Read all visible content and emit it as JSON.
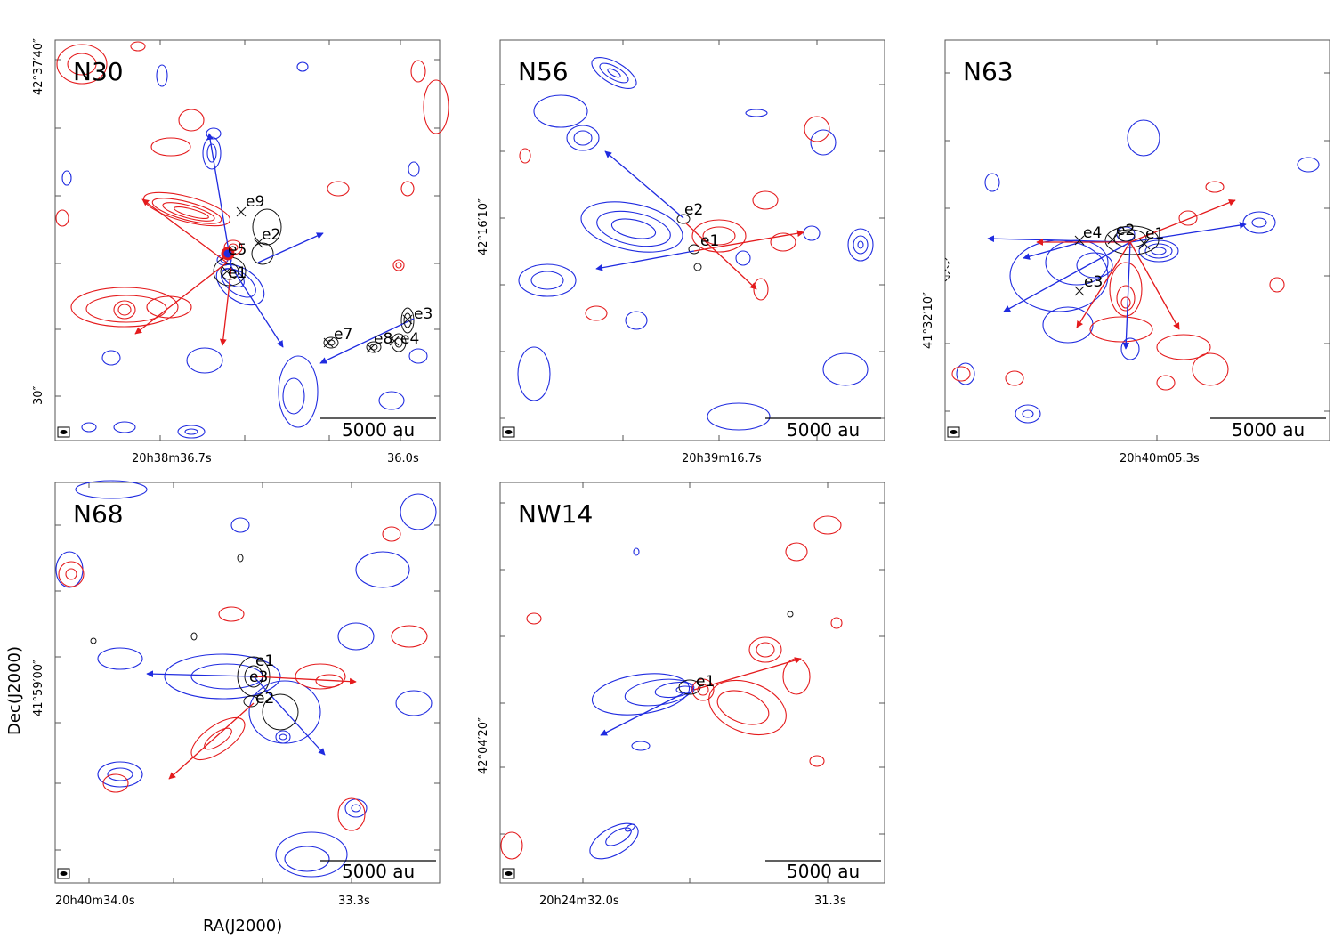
{
  "axes": {
    "xlabel": "RA(J2000)",
    "ylabel": "Dec(J2000)"
  },
  "scalebar_label": "5000 au",
  "panels": [
    {
      "name": "N30",
      "ra_tick": "20h38m36.7s",
      "ra_tick2": "36.0s",
      "dec_tick_top": "42°37′40″",
      "dec_tick_bottom": "30″",
      "cores": [
        "e9",
        "e2",
        "e5",
        "e1",
        "e3",
        "e7",
        "e8",
        "e4"
      ]
    },
    {
      "name": "N56",
      "ra_tick": "20h39m16.7s",
      "dec_tick": "42°16′10″",
      "cores": [
        "e2",
        "e1"
      ]
    },
    {
      "name": "N63",
      "ra_tick": "20h40m05.3s",
      "dec_tick": "41°32′10″",
      "cores": [
        "e4",
        "e2",
        "e1",
        "e3"
      ]
    },
    {
      "name": "N68",
      "ra_tick": "20h40m34.0s",
      "ra_tick2": "33.3s",
      "dec_tick": "41°59′00″",
      "cores": [
        "e1",
        "e3",
        "e2"
      ]
    },
    {
      "name": "NW14",
      "ra_tick": "20h24m32.0s",
      "ra_tick2": "31.3s",
      "dec_tick": "42°04′20″",
      "cores": [
        "e1"
      ]
    }
  ],
  "colors": {
    "redshifted": "#e41a1c",
    "blueshifted": "#1f2be0",
    "continuum": "#111111"
  }
}
